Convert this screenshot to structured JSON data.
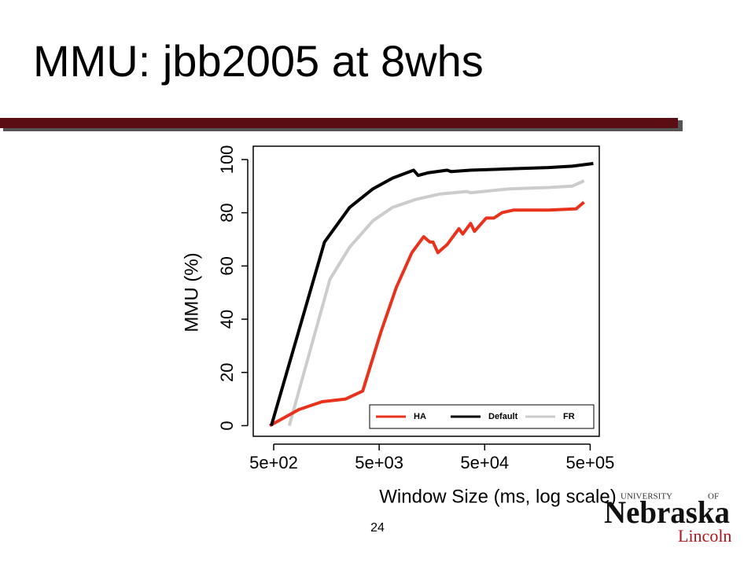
{
  "slide": {
    "title": "MMU: jbb2005 at 8whs",
    "page_number": "24",
    "logo": {
      "top": "UNIVERSITY",
      "of": "OF",
      "name": "Nebraska",
      "campus": "Lincoln"
    }
  },
  "chart_data": {
    "type": "line",
    "x_label": "Window Size (ms, log scale)",
    "y_label": "MMU (%)",
    "x_log": true,
    "xlim": [
      320,
      610000
    ],
    "ylim": [
      -4,
      105
    ],
    "xticks": [
      {
        "value": 500,
        "label": "5e+02"
      },
      {
        "value": 5000,
        "label": "5e+03"
      },
      {
        "value": 50000,
        "label": "5e+04"
      },
      {
        "value": 500000,
        "label": "5e+05"
      }
    ],
    "yticks": [
      0,
      20,
      40,
      60,
      80,
      100
    ],
    "legend": "bottom-right",
    "series": [
      {
        "name": "HA",
        "color": "#e8321c",
        "x": [
          459,
          863,
          1440,
          2400,
          3490,
          5170,
          7280,
          10200,
          13200,
          15100,
          16200,
          18000,
          22000,
          28500,
          31000,
          36800,
          40000,
          51700,
          61300,
          72800,
          94000,
          202000,
          368000,
          437000
        ],
        "values": [
          0,
          6,
          9,
          10,
          13,
          35,
          52,
          65,
          71,
          69,
          69,
          65,
          68,
          74,
          72,
          76,
          73,
          78,
          78,
          80,
          81,
          81,
          81.5,
          84
        ]
      },
      {
        "name": "Default",
        "color": "#000000",
        "x": [
          475,
          1515,
          2620,
          4360,
          6680,
          10600,
          11700,
          14400,
          22000,
          24000,
          36800,
          86300,
          202000,
          338000,
          535000
        ],
        "values": [
          0,
          69,
          82,
          89,
          93,
          96,
          94,
          95,
          96,
          95.5,
          96,
          96.5,
          97,
          97.5,
          98.5
        ]
      },
      {
        "name": "FR",
        "color": "#cccccc",
        "x": [
          703,
          1705,
          2620,
          4360,
          6680,
          11100,
          18600,
          33800,
          36800,
          86300,
          202000,
          338000,
          437000
        ],
        "values": [
          0,
          55,
          67,
          77,
          82,
          85,
          87,
          88,
          87.5,
          89,
          89.5,
          90,
          92
        ]
      }
    ]
  }
}
